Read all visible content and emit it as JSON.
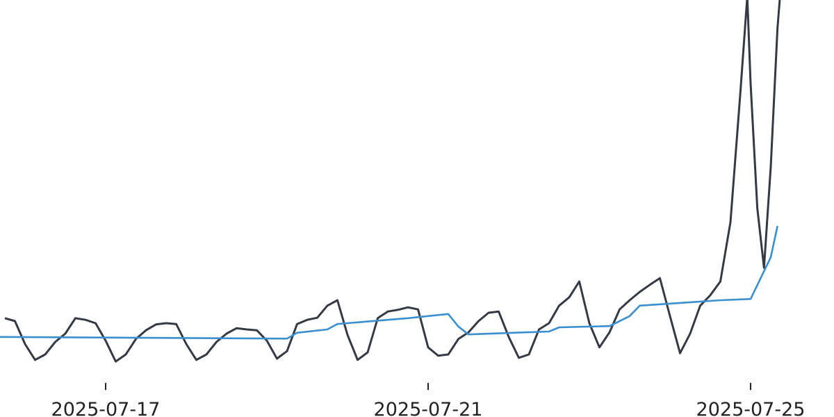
{
  "chart_data": {
    "type": "line",
    "title": "",
    "xlabel": "",
    "ylabel": "",
    "xlim": [
      "2025-07-15 16:30",
      "2025-07-25 11:00"
    ],
    "ylim": [
      0,
      100
    ],
    "y_axis_visible": false,
    "grid": false,
    "x_ticks": [
      "2025-07-17",
      "2025-07-21",
      "2025-07-25"
    ],
    "series": [
      {
        "color": "#343a44",
        "points": [
          [
            "2025-07-15 18:00",
            23.7
          ],
          [
            "2025-07-15 21:00",
            23.0
          ],
          [
            "2025-07-16 00:00",
            17.5
          ],
          [
            "2025-07-16 03:00",
            13.7
          ],
          [
            "2025-07-16 06:00",
            15.0
          ],
          [
            "2025-07-16 09:00",
            18.0
          ],
          [
            "2025-07-16 12:00",
            20.0
          ],
          [
            "2025-07-16 15:00",
            23.7
          ],
          [
            "2025-07-16 18:00",
            23.3
          ],
          [
            "2025-07-16 21:00",
            22.5
          ],
          [
            "2025-07-17 00:00",
            18.3
          ],
          [
            "2025-07-17 03:00",
            13.3
          ],
          [
            "2025-07-17 06:00",
            15.0
          ],
          [
            "2025-07-17 09:00",
            18.7
          ],
          [
            "2025-07-17 12:00",
            20.8
          ],
          [
            "2025-07-17 15:00",
            22.2
          ],
          [
            "2025-07-17 18:00",
            22.5
          ],
          [
            "2025-07-17 21:00",
            22.3
          ],
          [
            "2025-07-18 00:00",
            17.5
          ],
          [
            "2025-07-18 03:00",
            13.7
          ],
          [
            "2025-07-18 06:00",
            15.0
          ],
          [
            "2025-07-18 09:00",
            18.0
          ],
          [
            "2025-07-18 12:00",
            20.0
          ],
          [
            "2025-07-18 15:00",
            21.3
          ],
          [
            "2025-07-18 18:00",
            21.0
          ],
          [
            "2025-07-18 21:00",
            20.8
          ],
          [
            "2025-07-19 00:00",
            18.3
          ],
          [
            "2025-07-19 03:00",
            14.0
          ],
          [
            "2025-07-19 06:00",
            15.8
          ],
          [
            "2025-07-19 09:00",
            22.3
          ],
          [
            "2025-07-19 12:00",
            23.3
          ],
          [
            "2025-07-19 15:00",
            23.8
          ],
          [
            "2025-07-19 18:00",
            26.7
          ],
          [
            "2025-07-19 21:00",
            28.0
          ],
          [
            "2025-07-20 00:00",
            19.7
          ],
          [
            "2025-07-20 03:00",
            13.7
          ],
          [
            "2025-07-20 06:00",
            15.5
          ],
          [
            "2025-07-20 09:00",
            23.7
          ],
          [
            "2025-07-20 12:00",
            25.3
          ],
          [
            "2025-07-20 15:00",
            25.7
          ],
          [
            "2025-07-20 18:00",
            26.3
          ],
          [
            "2025-07-20 21:00",
            25.8
          ],
          [
            "2025-07-21 00:00",
            16.7
          ],
          [
            "2025-07-21 03:00",
            14.7
          ],
          [
            "2025-07-21 06:00",
            15.0
          ],
          [
            "2025-07-21 09:00",
            18.7
          ],
          [
            "2025-07-21 12:00",
            20.3
          ],
          [
            "2025-07-21 15:00",
            23.0
          ],
          [
            "2025-07-21 18:00",
            25.0
          ],
          [
            "2025-07-21 21:00",
            25.3
          ],
          [
            "2025-07-22 00:00",
            19.2
          ],
          [
            "2025-07-22 03:00",
            14.2
          ],
          [
            "2025-07-22 06:00",
            15.0
          ],
          [
            "2025-07-22 09:00",
            21.0
          ],
          [
            "2025-07-22 12:00",
            22.5
          ],
          [
            "2025-07-22 15:00",
            26.7
          ],
          [
            "2025-07-22 18:00",
            28.7
          ],
          [
            "2025-07-22 21:00",
            32.5
          ],
          [
            "2025-07-23 00:00",
            22.5
          ],
          [
            "2025-07-23 03:00",
            16.7
          ],
          [
            "2025-07-23 06:00",
            20.3
          ],
          [
            "2025-07-23 09:00",
            25.8
          ],
          [
            "2025-07-23 12:00",
            28.0
          ],
          [
            "2025-07-23 15:00",
            30.0
          ],
          [
            "2025-07-23 18:00",
            31.7
          ],
          [
            "2025-07-23 21:00",
            33.3
          ],
          [
            "2025-07-24 00:00",
            24.2
          ],
          [
            "2025-07-24 03:00",
            15.3
          ],
          [
            "2025-07-24 06:00",
            20.0
          ],
          [
            "2025-07-24 09:00",
            26.7
          ],
          [
            "2025-07-24 12:00",
            29.2
          ],
          [
            "2025-07-24 15:00",
            32.5
          ],
          [
            "2025-07-24 18:00",
            46.7
          ],
          [
            "2025-07-24 21:00",
            78.3
          ],
          [
            "2025-07-24 23:00",
            100.8
          ],
          [
            "2025-07-25 00:00",
            80.0
          ],
          [
            "2025-07-25 02:00",
            50.0
          ],
          [
            "2025-07-25 04:00",
            35.8
          ],
          [
            "2025-07-25 06:00",
            60.0
          ],
          [
            "2025-07-25 08:00",
            93.3
          ],
          [
            "2025-07-25 09:00",
            103.3
          ]
        ]
      },
      {
        "color": "#3a8fd0",
        "points": [
          [
            "2025-07-15 16:30",
            19.2
          ],
          [
            "2025-07-19 06:00",
            18.8
          ],
          [
            "2025-07-19 09:00",
            20.2
          ],
          [
            "2025-07-19 18:00",
            21.0
          ],
          [
            "2025-07-19 21:00",
            22.3
          ],
          [
            "2025-07-20 18:00",
            23.7
          ],
          [
            "2025-07-21 06:00",
            24.7
          ],
          [
            "2025-07-21 09:00",
            21.7
          ],
          [
            "2025-07-21 12:00",
            19.8
          ],
          [
            "2025-07-22 12:00",
            20.5
          ],
          [
            "2025-07-22 15:00",
            21.5
          ],
          [
            "2025-07-23 06:00",
            21.8
          ],
          [
            "2025-07-23 12:00",
            24.2
          ],
          [
            "2025-07-23 15:00",
            26.7
          ],
          [
            "2025-07-24 15:00",
            28.0
          ],
          [
            "2025-07-25 00:00",
            28.3
          ],
          [
            "2025-07-25 03:00",
            33.3
          ],
          [
            "2025-07-25 06:00",
            38.3
          ],
          [
            "2025-07-25 08:00",
            45.8
          ]
        ]
      }
    ]
  }
}
